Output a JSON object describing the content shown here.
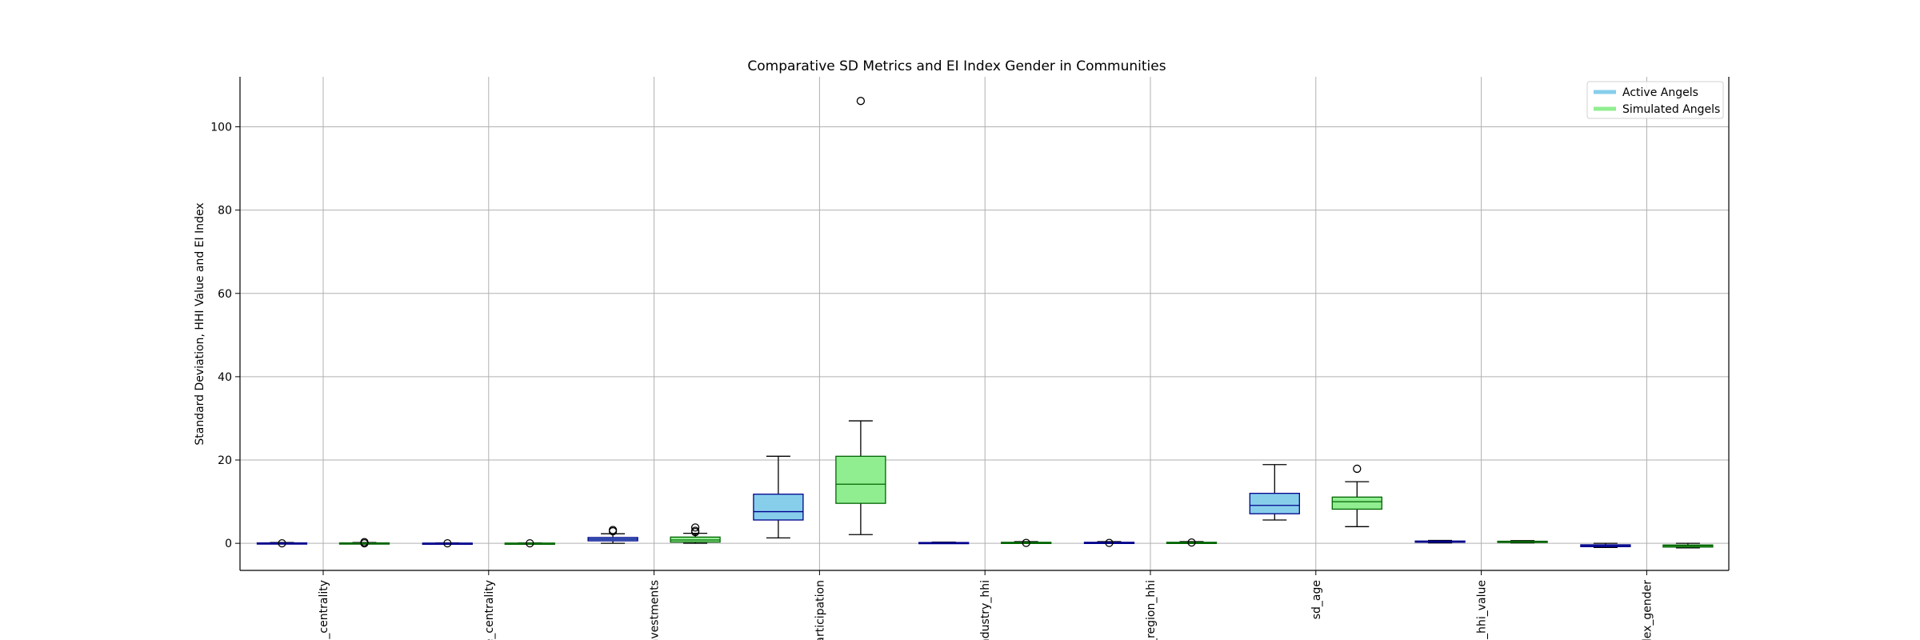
{
  "chart_data": {
    "type": "box",
    "title": "Comparative SD Metrics and EI Index Gender in Communities",
    "xlabel": "",
    "ylabel": "Standard Deviation, HHI Value and EI Index",
    "ylim": [
      -6.5,
      112
    ],
    "yticks": [
      0,
      20,
      40,
      60,
      80,
      100
    ],
    "grid": true,
    "legend_position": "top-right",
    "categories": [
      "_centrality",
      "e_centrality",
      "nvestments",
      "articipation",
      "ndustry_hhi",
      "_region_hhi",
      "sd_age",
      "_hhi_value",
      "dex_gender"
    ],
    "series": [
      {
        "name": "Active Angels",
        "face_color": "#87ceeb",
        "edge_color": "#00008b",
        "boxes": [
          {
            "whislo": 0.0,
            "q1": 0.0,
            "med": 0.05,
            "q3": 0.1,
            "whishi": 0.2,
            "fliers": [
              0.0
            ]
          },
          {
            "whislo": 0.0,
            "q1": 0.0,
            "med": 0.02,
            "q3": 0.05,
            "whishi": 0.1,
            "fliers": [
              0.0
            ]
          },
          {
            "whislo": 0.0,
            "q1": 0.6,
            "med": 1.0,
            "q3": 1.4,
            "whishi": 2.3,
            "fliers": [
              2.9,
              3.2
            ]
          },
          {
            "whislo": 1.3,
            "q1": 5.6,
            "med": 7.6,
            "q3": 11.8,
            "whishi": 20.9,
            "fliers": []
          },
          {
            "whislo": 0.0,
            "q1": 0.05,
            "med": 0.12,
            "q3": 0.2,
            "whishi": 0.3,
            "fliers": []
          },
          {
            "whislo": 0.0,
            "q1": 0.05,
            "med": 0.12,
            "q3": 0.25,
            "whishi": 0.4,
            "fliers": [
              0.1
            ]
          },
          {
            "whislo": 5.6,
            "q1": 7.1,
            "med": 9.1,
            "q3": 12.0,
            "whishi": 18.9,
            "fliers": []
          },
          {
            "whislo": 0.1,
            "q1": 0.3,
            "med": 0.45,
            "q3": 0.55,
            "whishi": 0.7,
            "fliers": []
          },
          {
            "whislo": -1.0,
            "q1": -0.8,
            "med": -0.6,
            "q3": -0.35,
            "whishi": 0.0,
            "fliers": []
          }
        ]
      },
      {
        "name": "Simulated Angels",
        "face_color": "#90ee90",
        "edge_color": "#006400",
        "boxes": [
          {
            "whislo": 0.0,
            "q1": 0.0,
            "med": 0.05,
            "q3": 0.1,
            "whishi": 0.2,
            "fliers": [
              0.0,
              0.3
            ]
          },
          {
            "whislo": 0.0,
            "q1": 0.0,
            "med": 0.02,
            "q3": 0.05,
            "whishi": 0.1,
            "fliers": [
              0.0
            ]
          },
          {
            "whislo": 0.0,
            "q1": 0.3,
            "med": 0.8,
            "q3": 1.5,
            "whishi": 2.4,
            "fliers": [
              2.7,
              3.0,
              3.8
            ]
          },
          {
            "whislo": 2.1,
            "q1": 9.6,
            "med": 14.2,
            "q3": 20.9,
            "whishi": 29.4,
            "fliers": [
              106.2
            ]
          },
          {
            "whislo": 0.0,
            "q1": 0.05,
            "med": 0.12,
            "q3": 0.25,
            "whishi": 0.4,
            "fliers": [
              0.1
            ]
          },
          {
            "whislo": 0.0,
            "q1": 0.05,
            "med": 0.12,
            "q3": 0.25,
            "whishi": 0.4,
            "fliers": [
              0.2
            ]
          },
          {
            "whislo": 4.0,
            "q1": 8.2,
            "med": 10.0,
            "q3": 11.1,
            "whishi": 14.8,
            "fliers": [
              17.9
            ]
          },
          {
            "whislo": 0.1,
            "q1": 0.3,
            "med": 0.4,
            "q3": 0.5,
            "whishi": 0.65,
            "fliers": []
          },
          {
            "whislo": -1.1,
            "q1": -0.9,
            "med": -0.6,
            "q3": -0.4,
            "whishi": 0.0,
            "fliers": []
          }
        ]
      }
    ]
  }
}
